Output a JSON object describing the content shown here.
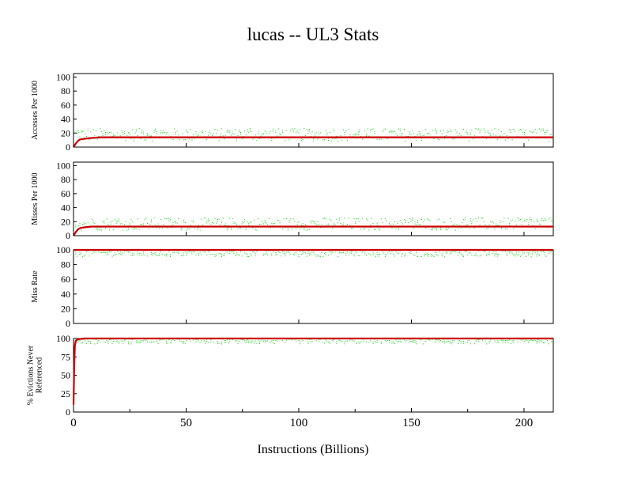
{
  "title": "lucas -- UL3  Stats",
  "xlabel": "Instructions (Billions)",
  "chart_data": {
    "type": "line",
    "title": "lucas -- UL3  Stats",
    "xlabel": "Instructions (Billions)",
    "xlim": [
      0,
      213
    ],
    "xticks": [
      "0",
      "50",
      "100",
      "150",
      "200"
    ],
    "colors": {
      "average": "#cc0000",
      "sample": "#00cc00",
      "axis": "#000000"
    },
    "panels": [
      {
        "ylabel": [
          "Accesses Per 1000"
        ],
        "ylim": [
          0,
          105
        ],
        "yticks": [
          "0",
          "20",
          "40",
          "60",
          "80",
          "100"
        ],
        "series": [
          {
            "color": "#cc0000",
            "style": "solid",
            "x": [
              0,
              1,
              2,
              3,
              5,
              8,
              12,
              20,
              40,
              60,
              100,
              150,
              200,
              213
            ],
            "y": [
              0,
              5,
              9,
              11,
              12,
              13,
              14,
              14,
              14,
              14,
              14,
              14,
              14,
              14
            ]
          },
          {
            "color": "#00cc00",
            "style": "dotted",
            "band": [
              8,
              26
            ]
          }
        ]
      },
      {
        "ylabel": [
          "Misses Per 1000"
        ],
        "ylim": [
          0,
          105
        ],
        "yticks": [
          "0",
          "20",
          "40",
          "60",
          "80",
          "100"
        ],
        "series": [
          {
            "color": "#cc0000",
            "style": "solid",
            "x": [
              0,
              1,
              2,
              3,
              5,
              8,
              12,
              20,
              40,
              60,
              100,
              150,
              200,
              213
            ],
            "y": [
              0,
              5,
              9,
              11,
              12,
              13,
              13,
              13,
              13,
              13,
              13,
              13,
              13,
              13
            ]
          },
          {
            "color": "#00cc00",
            "style": "dotted",
            "band": [
              7,
              25
            ]
          }
        ]
      },
      {
        "ylabel": [
          "Miss Rate"
        ],
        "ylim": [
          0,
          100
        ],
        "yticks": [
          "0",
          "20",
          "40",
          "60",
          "80",
          "100"
        ],
        "series": [
          {
            "color": "#cc0000",
            "style": "solid",
            "x": [
              0,
              213
            ],
            "y": [
              100,
              100
            ]
          },
          {
            "color": "#00cc00",
            "style": "dotted",
            "band": [
              90,
              100
            ]
          }
        ]
      },
      {
        "ylabel": [
          "% Evictions Never",
          "Referenced"
        ],
        "ylim": [
          0,
          100
        ],
        "yticks": [
          "0",
          "25",
          "50",
          "75",
          "100"
        ],
        "series": [
          {
            "color": "#cc0000",
            "style": "solid",
            "x": [
              0,
              0.3,
              0.6,
              1,
              2,
              5,
              213
            ],
            "y": [
              10,
              60,
              90,
              97,
              99,
              100,
              100
            ]
          },
          {
            "color": "#00cc00",
            "style": "dotted",
            "band": [
              92,
              100
            ]
          }
        ]
      }
    ]
  }
}
